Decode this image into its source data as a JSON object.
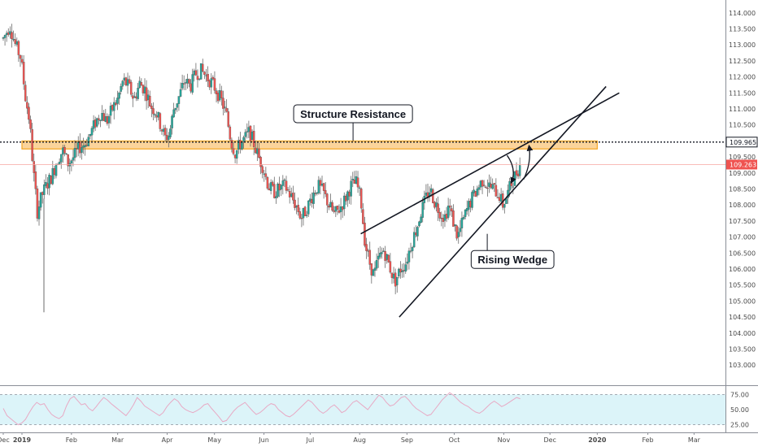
{
  "chart_data": {
    "type": "candlestick",
    "title": "",
    "y_axis": {
      "range": [
        102.6,
        114.25
      ],
      "ticks": [
        "103.000",
        "103.500",
        "104.000",
        "104.500",
        "105.000",
        "105.500",
        "106.000",
        "106.500",
        "107.000",
        "107.500",
        "108.000",
        "108.500",
        "109.000",
        "109.500",
        "110.000",
        "110.500",
        "111.000",
        "111.500",
        "112.000",
        "112.500",
        "113.000",
        "113.500",
        "114.000"
      ]
    },
    "x_axis": {
      "labels": [
        {
          "text": "Dec",
          "pos": 0.0
        },
        {
          "text": "2019",
          "pos": 0.85,
          "bold": true
        },
        {
          "text": "Feb",
          "pos": 3.1
        },
        {
          "text": "Mar",
          "pos": 5.2
        },
        {
          "text": "Apr",
          "pos": 7.45
        },
        {
          "text": "May",
          "pos": 9.6
        },
        {
          "text": "Jun",
          "pos": 11.85
        },
        {
          "text": "Jul",
          "pos": 13.95
        },
        {
          "text": "Aug",
          "pos": 16.2
        },
        {
          "text": "Sep",
          "pos": 18.35
        },
        {
          "text": "Oct",
          "pos": 20.5
        },
        {
          "text": "Nov",
          "pos": 22.75
        },
        {
          "text": "Dec",
          "pos": 24.85
        },
        {
          "text": "2020",
          "pos": 27.0,
          "bold": true
        },
        {
          "text": "Feb",
          "pos": 29.3
        },
        {
          "text": "Mar",
          "pos": 31.4
        }
      ]
    },
    "price_path": [
      [
        0.0,
        113.2
      ],
      [
        0.3,
        113.6
      ],
      [
        0.55,
        113.0
      ],
      [
        0.8,
        112.6
      ],
      [
        1.0,
        111.4
      ],
      [
        1.2,
        110.6
      ],
      [
        1.35,
        109.2
      ],
      [
        1.55,
        107.8
      ],
      [
        1.75,
        108.3
      ],
      [
        1.95,
        108.6
      ],
      [
        2.2,
        108.9
      ],
      [
        2.45,
        109.4
      ],
      [
        2.7,
        109.7
      ],
      [
        2.95,
        109.3
      ],
      [
        3.2,
        109.5
      ],
      [
        3.45,
        109.8
      ],
      [
        3.7,
        109.9
      ],
      [
        3.95,
        110.2
      ],
      [
        4.2,
        110.6
      ],
      [
        4.45,
        110.9
      ],
      [
        4.7,
        110.6
      ],
      [
        4.95,
        111.0
      ],
      [
        5.2,
        111.3
      ],
      [
        5.45,
        111.9
      ],
      [
        5.7,
        111.7
      ],
      [
        5.95,
        111.3
      ],
      [
        6.2,
        111.8
      ],
      [
        6.45,
        111.6
      ],
      [
        6.7,
        111.1
      ],
      [
        6.95,
        110.9
      ],
      [
        7.15,
        110.5
      ],
      [
        7.35,
        110.1
      ],
      [
        7.55,
        110.2
      ],
      [
        7.75,
        111.0
      ],
      [
        8.0,
        111.4
      ],
      [
        8.25,
        111.9
      ],
      [
        8.5,
        111.7
      ],
      [
        8.75,
        112.1
      ],
      [
        9.0,
        112.2
      ],
      [
        9.25,
        112.0
      ],
      [
        9.5,
        111.8
      ],
      [
        9.75,
        111.5
      ],
      [
        9.95,
        111.2
      ],
      [
        10.15,
        110.8
      ],
      [
        10.35,
        110.0
      ],
      [
        10.55,
        109.6
      ],
      [
        10.75,
        109.9
      ],
      [
        11.0,
        110.1
      ],
      [
        11.2,
        110.3
      ],
      [
        11.4,
        109.9
      ],
      [
        11.6,
        109.5
      ],
      [
        11.8,
        109.2
      ],
      [
        12.05,
        108.6
      ],
      [
        12.3,
        108.4
      ],
      [
        12.55,
        108.5
      ],
      [
        12.8,
        108.6
      ],
      [
        13.05,
        108.3
      ],
      [
        13.3,
        108.0
      ],
      [
        13.55,
        107.6
      ],
      [
        13.8,
        107.9
      ],
      [
        14.05,
        108.3
      ],
      [
        14.3,
        108.6
      ],
      [
        14.55,
        108.4
      ],
      [
        14.8,
        108.0
      ],
      [
        15.05,
        107.7
      ],
      [
        15.3,
        107.9
      ],
      [
        15.55,
        108.2
      ],
      [
        15.8,
        108.6
      ],
      [
        16.05,
        108.7
      ],
      [
        16.25,
        108.2
      ],
      [
        16.45,
        106.8
      ],
      [
        16.65,
        106.2
      ],
      [
        16.85,
        105.8
      ],
      [
        17.05,
        106.3
      ],
      [
        17.3,
        106.6
      ],
      [
        17.55,
        106.1
      ],
      [
        17.8,
        105.6
      ],
      [
        18.05,
        106.0
      ],
      [
        18.3,
        106.2
      ],
      [
        18.55,
        106.8
      ],
      [
        18.8,
        107.3
      ],
      [
        19.0,
        107.8
      ],
      [
        19.2,
        108.2
      ],
      [
        19.4,
        108.5
      ],
      [
        19.6,
        108.1
      ],
      [
        19.85,
        107.8
      ],
      [
        20.05,
        107.6
      ],
      [
        20.25,
        108.0
      ],
      [
        20.45,
        107.5
      ],
      [
        20.65,
        107.0
      ],
      [
        20.85,
        107.4
      ],
      [
        21.05,
        107.8
      ],
      [
        21.3,
        108.2
      ],
      [
        21.55,
        108.5
      ],
      [
        21.8,
        108.8
      ],
      [
        22.05,
        108.6
      ],
      [
        22.3,
        108.5
      ],
      [
        22.55,
        108.3
      ],
      [
        22.7,
        108.0
      ],
      [
        22.85,
        108.2
      ],
      [
        23.05,
        108.6
      ],
      [
        23.25,
        108.9
      ],
      [
        23.5,
        109.26
      ]
    ],
    "last_price": 109.263,
    "last_price_label": "109.263",
    "resistance_level": 109.965,
    "resistance_label": "109.965",
    "resistance_zone": {
      "x0": 0.85,
      "x1": 27.0,
      "y_low": 109.75,
      "y_high": 110.0
    },
    "wedge_upper": {
      "x0": 16.25,
      "y0": 107.1,
      "x1": 28.0,
      "y1": 111.5
    },
    "wedge_lower": {
      "x0": 18.0,
      "y0": 104.5,
      "x1": 27.4,
      "y1": 111.7
    },
    "volatility_spike_low": 104.65,
    "arrows": [
      {
        "from_x": 22.9,
        "from_y": 109.55,
        "to_x": 23.1,
        "to_y": 108.7
      },
      {
        "from_x": 23.65,
        "from_y": 108.8,
        "to_x": 23.9,
        "to_y": 109.85
      }
    ],
    "annotations": [
      {
        "text": "Structure Resistance",
        "x": 15.9,
        "y": 110.85,
        "pointer_x": 15.9,
        "pointer_y": 110.0
      },
      {
        "text": "Rising Wedge",
        "x": 23.15,
        "y": 106.3,
        "pointer_x": 22.0,
        "pointer_y": 107.1
      }
    ],
    "oscillator": {
      "ticks": [
        "25.00",
        "50.00",
        "75.00"
      ],
      "range": [
        15,
        85
      ],
      "upper_band": 75,
      "lower_band": 25,
      "values": [
        52,
        40,
        35,
        30,
        25,
        28,
        34,
        45,
        55,
        62,
        58,
        60,
        50,
        42,
        38,
        35,
        40,
        56,
        68,
        72,
        65,
        58,
        60,
        52,
        48,
        55,
        63,
        70,
        66,
        60,
        55,
        50,
        45,
        40,
        48,
        58,
        70,
        64,
        56,
        52,
        48,
        44,
        40,
        45,
        55,
        62,
        68,
        64,
        55,
        50,
        47,
        45,
        48,
        52,
        58,
        60,
        52,
        45,
        38,
        30,
        32,
        40,
        48,
        54,
        58,
        62,
        55,
        48,
        42,
        45,
        50,
        56,
        60,
        58,
        50,
        45,
        40,
        38,
        42,
        48,
        54,
        60,
        66,
        62,
        55,
        48,
        44,
        48,
        54,
        58,
        52,
        45,
        48,
        55,
        62,
        65,
        60,
        55,
        50,
        58,
        66,
        74,
        70,
        62,
        56,
        58,
        64,
        70,
        72,
        66,
        58,
        52,
        48,
        44,
        40,
        42,
        50,
        58,
        66,
        72,
        78,
        74,
        68,
        62,
        58,
        55,
        50,
        46,
        44,
        48,
        54,
        60,
        64,
        60,
        55,
        58,
        62,
        66,
        70,
        68
      ]
    }
  }
}
